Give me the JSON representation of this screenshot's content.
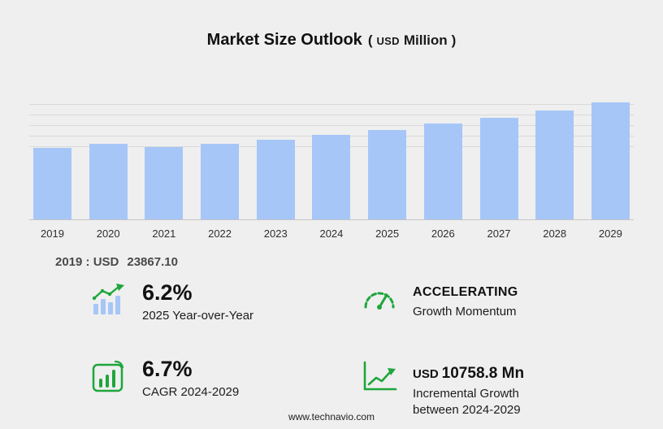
{
  "header": {
    "title": "Market Size Outlook",
    "unit_open": "(",
    "unit_currency": "USD",
    "unit_label": "Million",
    "unit_close": ")"
  },
  "chart_data": {
    "type": "bar",
    "title": "Market Size Outlook (USD Million)",
    "categories": [
      "2019",
      "2020",
      "2021",
      "2022",
      "2023",
      "2024",
      "2025",
      "2026",
      "2027",
      "2028",
      "2029"
    ],
    "values": [
      23867.1,
      25240,
      24100,
      25260,
      26540,
      28106,
      29849,
      31780,
      33890,
      36180,
      38865
    ],
    "ylabel": "USD Million",
    "ylim": [
      0,
      40000
    ],
    "grid": true,
    "legend": "none",
    "bar_color": "#a6c6f7"
  },
  "annotation": {
    "label": "2019 : USD",
    "value": "23867.10"
  },
  "stats": [
    {
      "icon": "yoy-growth-bars-icon",
      "value": "6.2%",
      "label": "2025 Year-over-Year"
    },
    {
      "icon": "speedometer-icon",
      "value": "ACCELERATING",
      "label": "Growth Momentum"
    },
    {
      "icon": "cagr-bar-chart-icon",
      "value": "6.7%",
      "label": "CAGR 2024-2029"
    },
    {
      "icon": "incremental-growth-arrow-icon",
      "value_prefix": "USD",
      "value": "10758.8 Mn",
      "label": "Incremental Growth between 2024-2029"
    }
  ],
  "footer": {
    "website": "www.technavio.com"
  },
  "colors": {
    "background": "#efefef",
    "bar": "#a6c6f7",
    "accent_green": "#1ea63b",
    "grid": "#d9d9d9",
    "text_dark": "#111111",
    "text_muted": "#4a4a4a"
  }
}
